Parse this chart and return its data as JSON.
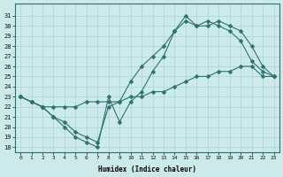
{
  "xlabel": "Humidex (Indice chaleur)",
  "ylabel": "",
  "bg_color": "#cceaea",
  "line_color": "#2d7070",
  "xlim": [
    -0.5,
    23.5
  ],
  "ylim": [
    17.5,
    32.2
  ],
  "xticks": [
    0,
    1,
    2,
    3,
    4,
    5,
    6,
    7,
    8,
    9,
    10,
    11,
    12,
    13,
    14,
    15,
    16,
    17,
    18,
    19,
    20,
    21,
    22,
    23
  ],
  "yticks": [
    18,
    19,
    20,
    21,
    22,
    23,
    24,
    25,
    26,
    27,
    28,
    29,
    30,
    31
  ],
  "curve_jagged_x": [
    0,
    1,
    2,
    3,
    4,
    5,
    6,
    7,
    8,
    9,
    10,
    11,
    12,
    13,
    14,
    15,
    16,
    17,
    18,
    19,
    20,
    21,
    22,
    23
  ],
  "curve_jagged_y": [
    23.0,
    22.5,
    22.0,
    21.0,
    20.0,
    19.0,
    18.5,
    18.0,
    23.0,
    20.5,
    22.5,
    23.5,
    25.5,
    27.0,
    29.5,
    31.0,
    30.0,
    30.0,
    30.5,
    30.0,
    29.5,
    28.0,
    26.0,
    25.0
  ],
  "curve_upper_x": [
    0,
    1,
    2,
    3,
    4,
    5,
    6,
    7,
    8,
    9,
    10,
    11,
    12,
    13,
    14,
    15,
    16,
    17,
    18,
    19,
    20,
    21,
    22,
    23
  ],
  "curve_upper_y": [
    23.0,
    22.5,
    22.0,
    21.0,
    20.5,
    19.5,
    19.0,
    18.5,
    22.0,
    22.5,
    24.5,
    26.0,
    27.0,
    28.0,
    29.5,
    30.5,
    30.0,
    30.5,
    30.0,
    29.5,
    28.5,
    26.5,
    25.5,
    25.0
  ],
  "curve_lower_x": [
    0,
    1,
    2,
    3,
    4,
    5,
    6,
    7,
    8,
    9,
    10,
    11,
    12,
    13,
    14,
    15,
    16,
    17,
    18,
    19,
    20,
    21,
    22,
    23
  ],
  "curve_lower_y": [
    23.0,
    22.5,
    22.0,
    22.0,
    22.0,
    22.0,
    22.5,
    22.5,
    22.5,
    22.5,
    23.0,
    23.0,
    23.5,
    23.5,
    24.0,
    24.5,
    25.0,
    25.0,
    25.5,
    25.5,
    26.0,
    26.0,
    25.0,
    25.0
  ],
  "grid_color": "#aad4d4",
  "marker": "D",
  "markersize": 2.5
}
